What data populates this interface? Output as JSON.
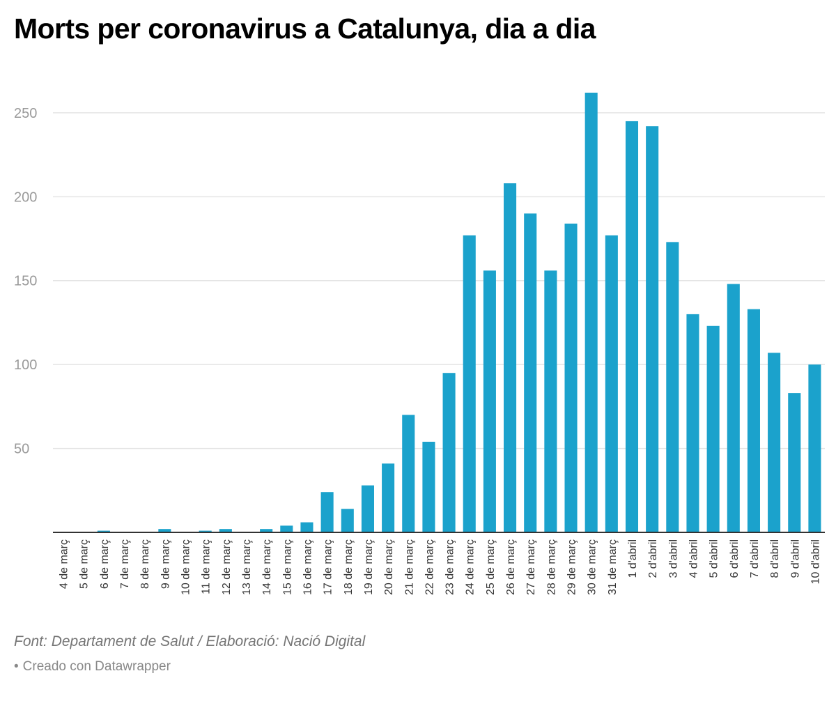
{
  "chart_data": {
    "type": "bar",
    "title": "Morts per coronavirus a Catalunya, dia a dia",
    "xlabel": "",
    "ylabel": "",
    "ylim": [
      0,
      262
    ],
    "yticks": [
      50,
      100,
      150,
      200,
      250
    ],
    "color": "#1ba2cc",
    "categories": [
      "4 de març",
      "5 de març",
      "6 de març",
      "7 de març",
      "8 de març",
      "9 de març",
      "10 de març",
      "11 de març",
      "12 de març",
      "13 de març",
      "14 de març",
      "15 de març",
      "16 de març",
      "17 de març",
      "18 de març",
      "19 de març",
      "20 de març",
      "21 de març",
      "22 de març",
      "23 de març",
      "24 de març",
      "25 de març",
      "26 de març",
      "27 de març",
      "28 de març",
      "29 de març",
      "30 de març",
      "31 de març",
      "1 d'abril",
      "2 d'abril",
      "3 d'abril",
      "4 d'abril",
      "5 d'abril",
      "6 d'abril",
      "7 d'abril",
      "8 d'abril",
      "9 d'abril",
      "10 d'abril"
    ],
    "values": [
      0,
      0,
      1,
      0,
      0,
      2,
      0,
      1,
      2,
      0,
      2,
      4,
      6,
      24,
      14,
      28,
      41,
      70,
      54,
      95,
      177,
      156,
      208,
      190,
      156,
      184,
      262,
      177,
      245,
      242,
      173,
      130,
      123,
      148,
      133,
      107,
      83,
      100
    ]
  },
  "footer": {
    "source": "Font: Departament de Salut / Elaboració: Nació Digital",
    "bullet": "•",
    "credit": "Creado con Datawrapper"
  }
}
